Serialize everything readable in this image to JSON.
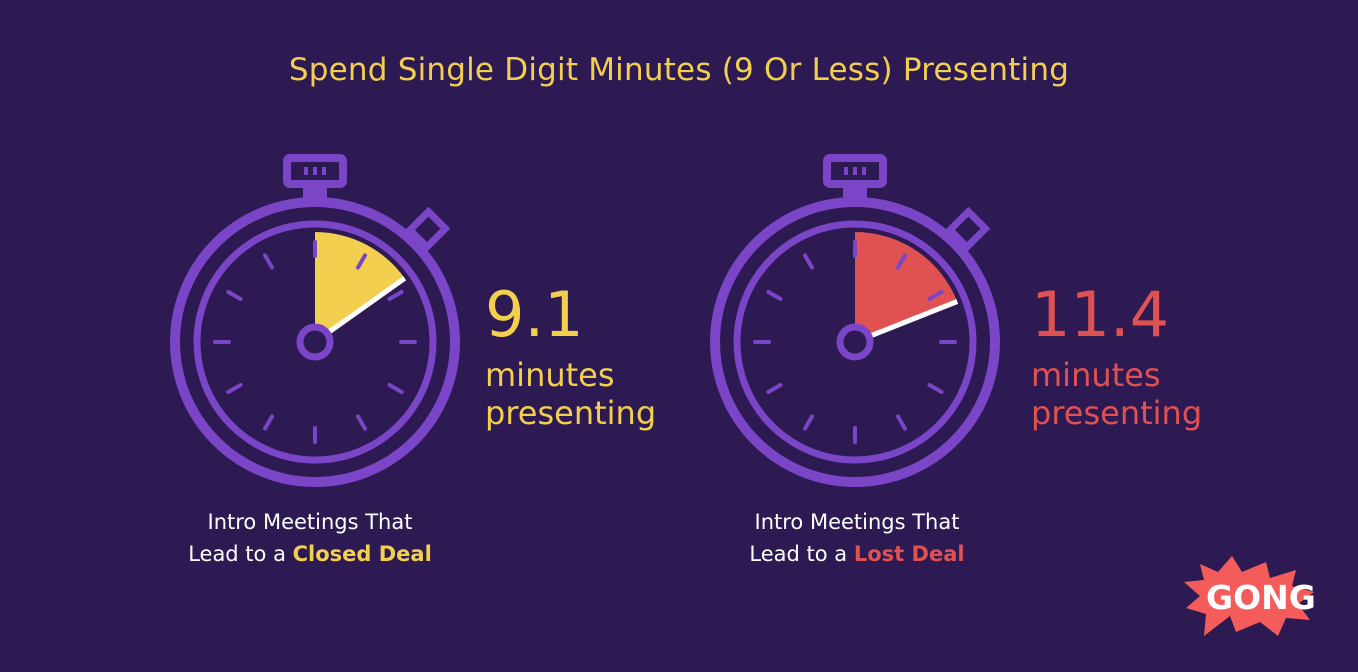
{
  "title": "Spend Single Digit Minutes (9 Or Less) Presenting",
  "colors": {
    "background": "#2d1a52",
    "timer_outline": "#7b45c8",
    "closed": "#f2cf4f",
    "lost": "#e05252",
    "caption": "#ffffff"
  },
  "chart_data": {
    "type": "gauge",
    "title": "Spend Single Digit Minutes (9 Or Less) Presenting",
    "dial_max_minutes": 60,
    "series": [
      {
        "id": "closed",
        "value": 9.1,
        "value_label": "9.1",
        "unit_line1": "minutes",
        "unit_line2": "presenting",
        "caption_line1": "Intro Meetings That",
        "caption_line2_prefix": "Lead to a ",
        "caption_highlight": "Closed Deal",
        "color": "#f2cf4f"
      },
      {
        "id": "lost",
        "value": 11.4,
        "value_label": "11.4",
        "unit_line1": "minutes",
        "unit_line2": "presenting",
        "caption_line1": "Intro Meetings That",
        "caption_line2_prefix": "Lead to a ",
        "caption_highlight": "Lost Deal",
        "color": "#e05252"
      }
    ]
  },
  "logo": {
    "text": "GONG",
    "color": "#f45b5b"
  }
}
